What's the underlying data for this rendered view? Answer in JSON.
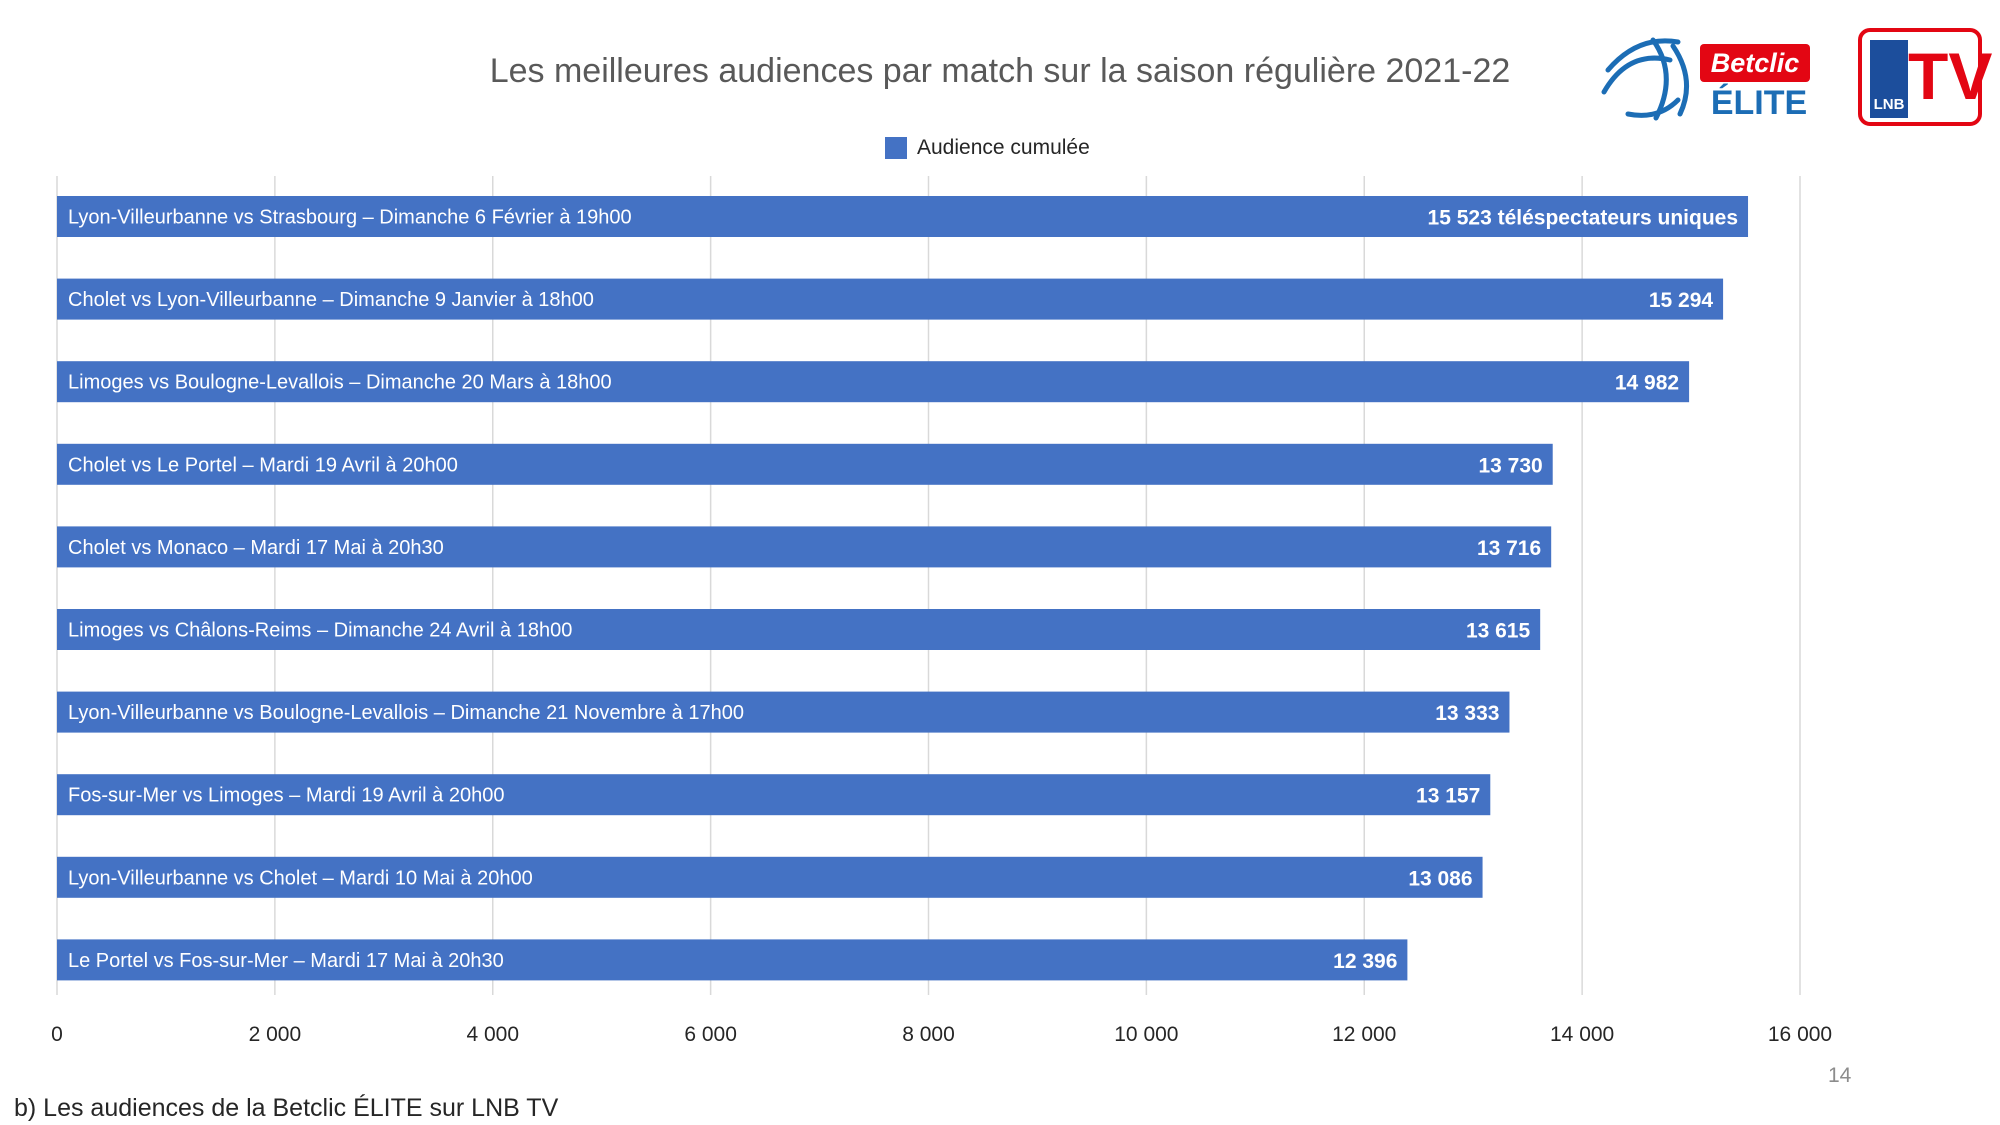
{
  "title": "Les meilleures audiences par match sur la saison régulière 2021-22",
  "legend": {
    "label": "Audience cumulée",
    "color": "#4472C4"
  },
  "logos": {
    "betclic": {
      "badge_text": "Betclic",
      "word": "ÉLITE",
      "badge_color": "#E30613",
      "word_color": "#1C6DB5"
    },
    "lnb_tv": {
      "text": "TV",
      "small_text": "LNB",
      "color": "#E30613",
      "accent": "#1C4E9C"
    }
  },
  "page_number": "14",
  "caption": "b) Les audiences de la Betclic ÉLITE sur LNB TV",
  "chart_data": {
    "type": "bar",
    "orientation": "horizontal",
    "title": "Les meilleures audiences par match sur la saison régulière 2021-22",
    "xlabel": "",
    "ylabel": "",
    "xlim": [
      0,
      16000
    ],
    "ticks": [
      0,
      2000,
      4000,
      6000,
      8000,
      10000,
      12000,
      14000,
      16000
    ],
    "tick_labels": [
      "0",
      "2 000",
      "4 000",
      "6 000",
      "8 000",
      "10 000",
      "12 000",
      "14 000",
      "16 000"
    ],
    "grid": true,
    "legend_position": "top",
    "bar_color": "#4472C4",
    "series": [
      {
        "name": "Audience cumulée",
        "values": [
          15523,
          15294,
          14982,
          13730,
          13716,
          13615,
          13333,
          13157,
          13086,
          12396
        ]
      }
    ],
    "categories": [
      "Lyon-Villeurbanne vs Strasbourg – Dimanche 6 Février à 19h00",
      "Cholet vs Lyon-Villeurbanne – Dimanche 9 Janvier à 18h00",
      "Limoges vs Boulogne-Levallois – Dimanche 20 Mars à 18h00",
      "Cholet vs Le Portel – Mardi 19 Avril à 20h00",
      "Cholet vs Monaco – Mardi 17 Mai à 20h30",
      "Limoges vs Châlons-Reims – Dimanche 24 Avril à 18h00",
      "Lyon-Villeurbanne vs Boulogne-Levallois – Dimanche 21 Novembre à 17h00",
      "Fos-sur-Mer vs Limoges – Mardi 19 Avril à 20h00",
      "Lyon-Villeurbanne vs Cholet – Mardi 10 Mai à 20h00",
      "Le Portel vs Fos-sur-Mer – Mardi 17 Mai à 20h30"
    ],
    "value_labels": [
      "15 523 téléspectateurs uniques",
      "15 294",
      "14 982",
      "13 730",
      "13 716",
      "13 615",
      "13 333",
      "13 157",
      "13 086",
      "12 396"
    ]
  }
}
